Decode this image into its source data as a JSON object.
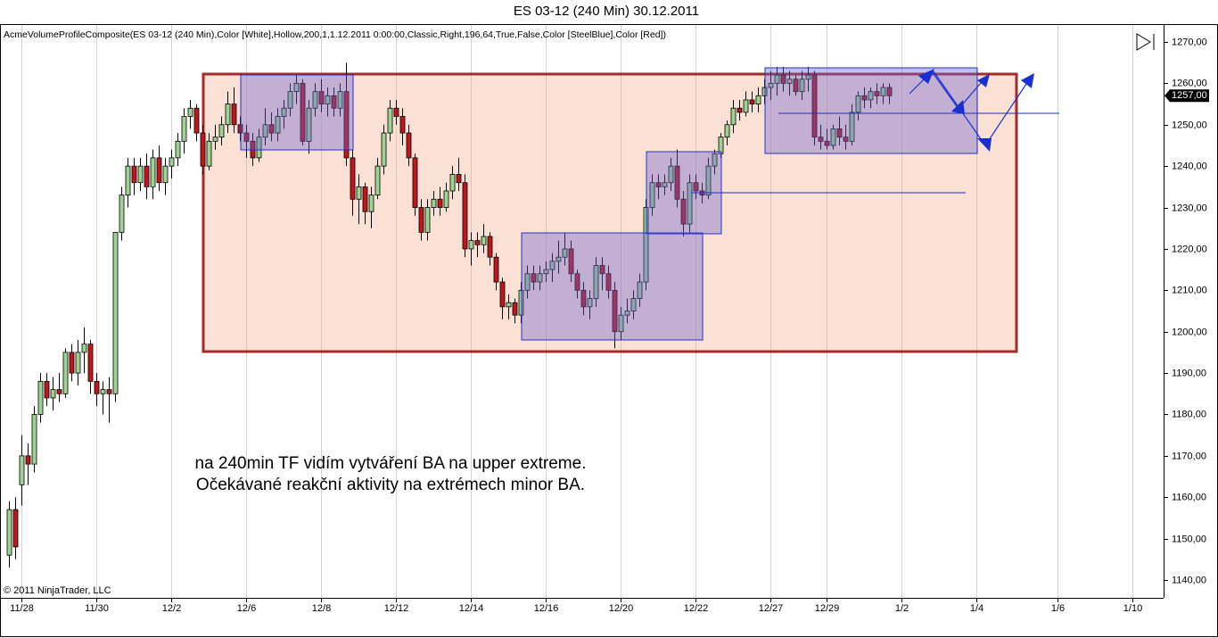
{
  "chart_data": {
    "type": "candlestick",
    "title": "ES 03-12 (240 Min)  30.12.2011",
    "indicator_label": "AcmeVolumeProfileComposite(ES 03-12 (240 Min),Color [White],Hollow,200,1,1.12.2011 0:00:00,Classic,Right,196,64,True,False,Color [SteelBlue],Color [Red])",
    "copyright": "© 2011 NinjaTrader, LLC",
    "annotation": [
      "na 240min TF vidím vytváření BA na upper extreme.",
      "Očekávané reakční aktivity na extrémech minor BA."
    ],
    "up_color": "#9fd393",
    "down_color": "#c0171c",
    "xlim": [
      -1.43,
      185
    ],
    "ylim": [
      1140,
      1270
    ],
    "yticks": [
      {
        "value": 1140,
        "label": "1140,00"
      },
      {
        "value": 1150,
        "label": "1150,00"
      },
      {
        "value": 1160,
        "label": "1160,00"
      },
      {
        "value": 1170,
        "label": "1170,00"
      },
      {
        "value": 1180,
        "label": "1180,00"
      },
      {
        "value": 1190,
        "label": "1190,00"
      },
      {
        "value": 1200,
        "label": "1200,00"
      },
      {
        "value": 1210,
        "label": "1210,00"
      },
      {
        "value": 1220,
        "label": "1220,00"
      },
      {
        "value": 1230,
        "label": "1230,00"
      },
      {
        "value": 1240,
        "label": "1240,00"
      },
      {
        "value": 1250,
        "label": "1250,00"
      },
      {
        "value": 1260,
        "label": "1260,00"
      },
      {
        "value": 1270,
        "label": "1270,00"
      }
    ],
    "xticks": [
      {
        "value": 2,
        "label": "11/28"
      },
      {
        "value": 14,
        "label": "11/30"
      },
      {
        "value": 26,
        "label": "12/2"
      },
      {
        "value": 38,
        "label": "12/6"
      },
      {
        "value": 50,
        "label": "12/8"
      },
      {
        "value": 62,
        "label": "12/12"
      },
      {
        "value": 74,
        "label": "12/14"
      },
      {
        "value": 86,
        "label": "12/16"
      },
      {
        "value": 98,
        "label": "12/20"
      },
      {
        "value": 110,
        "label": "12/22"
      },
      {
        "value": 122,
        "label": "12/27"
      },
      {
        "value": 131,
        "label": "12/29"
      },
      {
        "value": 143,
        "label": "1/2"
      },
      {
        "value": 155,
        "label": "1/4"
      },
      {
        "value": 168,
        "label": "1/6"
      },
      {
        "value": 180,
        "label": "1/10"
      }
    ],
    "last_price": {
      "value": 1257,
      "label": "1257,00"
    },
    "ohlc": [
      [
        1146,
        1159,
        1143,
        1157
      ],
      [
        1157,
        1160,
        1145,
        1148
      ],
      [
        1163,
        1175,
        1158,
        1170
      ],
      [
        1170,
        1173,
        1163,
        1168
      ],
      [
        1168,
        1182,
        1166,
        1180
      ],
      [
        1180,
        1190,
        1178,
        1188
      ],
      [
        1188,
        1190,
        1182,
        1184
      ],
      [
        1184,
        1189,
        1181,
        1186
      ],
      [
        1186,
        1190,
        1183,
        1185
      ],
      [
        1185,
        1196,
        1184,
        1195
      ],
      [
        1195,
        1197,
        1188,
        1190
      ],
      [
        1190,
        1198,
        1187,
        1195
      ],
      [
        1195,
        1201,
        1190,
        1197
      ],
      [
        1197,
        1198,
        1185,
        1188
      ],
      [
        1188,
        1190,
        1182,
        1185
      ],
      [
        1185,
        1188,
        1180,
        1186
      ],
      [
        1186,
        1189,
        1178,
        1185
      ],
      [
        1185,
        1224,
        1183,
        1224
      ],
      [
        1224,
        1235,
        1222,
        1233
      ],
      [
        1233,
        1242,
        1230,
        1240
      ],
      [
        1240,
        1242,
        1233,
        1236
      ],
      [
        1236,
        1242,
        1234,
        1240
      ],
      [
        1240,
        1243,
        1232,
        1235
      ],
      [
        1235,
        1244,
        1232,
        1242
      ],
      [
        1242,
        1245,
        1234,
        1236
      ],
      [
        1236,
        1242,
        1233,
        1240
      ],
      [
        1240,
        1244,
        1237,
        1242
      ],
      [
        1242,
        1248,
        1240,
        1246
      ],
      [
        1246,
        1254,
        1243,
        1252
      ],
      [
        1252,
        1256,
        1249,
        1254
      ],
      [
        1254,
        1255,
        1246,
        1248
      ],
      [
        1248,
        1250,
        1238,
        1240
      ],
      [
        1240,
        1248,
        1239,
        1246
      ],
      [
        1246,
        1250,
        1244,
        1247
      ],
      [
        1247,
        1252,
        1245,
        1250
      ],
      [
        1250,
        1258,
        1248,
        1255
      ],
      [
        1255,
        1259,
        1248,
        1250
      ],
      [
        1250,
        1252,
        1246,
        1248
      ],
      [
        1248,
        1250,
        1242,
        1246
      ],
      [
        1246,
        1248,
        1240,
        1242
      ],
      [
        1242,
        1249,
        1241,
        1247
      ],
      [
        1247,
        1254,
        1245,
        1250
      ],
      [
        1250,
        1253,
        1246,
        1248
      ],
      [
        1248,
        1254,
        1246,
        1252
      ],
      [
        1252,
        1256,
        1249,
        1254
      ],
      [
        1254,
        1260,
        1252,
        1258
      ],
      [
        1258,
        1262,
        1255,
        1260
      ],
      [
        1260,
        1261,
        1245,
        1246
      ],
      [
        1246,
        1256,
        1243,
        1254
      ],
      [
        1254,
        1260,
        1252,
        1258
      ],
      [
        1258,
        1261,
        1253,
        1255
      ],
      [
        1255,
        1259,
        1252,
        1257
      ],
      [
        1257,
        1259,
        1252,
        1254
      ],
      [
        1254,
        1260,
        1252,
        1258
      ],
      [
        1258,
        1265,
        1240,
        1242
      ],
      [
        1242,
        1244,
        1228,
        1232
      ],
      [
        1232,
        1238,
        1226,
        1235
      ],
      [
        1235,
        1236,
        1226,
        1229
      ],
      [
        1229,
        1235,
        1225,
        1233
      ],
      [
        1233,
        1242,
        1232,
        1240
      ],
      [
        1240,
        1250,
        1238,
        1248
      ],
      [
        1248,
        1256,
        1246,
        1254
      ],
      [
        1254,
        1256,
        1250,
        1252
      ],
      [
        1252,
        1254,
        1245,
        1248
      ],
      [
        1248,
        1250,
        1240,
        1242
      ],
      [
        1242,
        1243,
        1228,
        1230
      ],
      [
        1230,
        1232,
        1222,
        1224
      ],
      [
        1224,
        1232,
        1222,
        1230
      ],
      [
        1230,
        1234,
        1228,
        1232
      ],
      [
        1232,
        1235,
        1228,
        1230
      ],
      [
        1230,
        1236,
        1229,
        1234
      ],
      [
        1234,
        1240,
        1232,
        1238
      ],
      [
        1238,
        1242,
        1234,
        1236
      ],
      [
        1236,
        1238,
        1218,
        1220
      ],
      [
        1220,
        1224,
        1216,
        1222
      ],
      [
        1222,
        1224,
        1218,
        1221
      ],
      [
        1221,
        1226,
        1219,
        1223
      ],
      [
        1223,
        1224,
        1216,
        1218
      ],
      [
        1218,
        1219,
        1210,
        1212
      ],
      [
        1212,
        1213,
        1203,
        1206
      ],
      [
        1206,
        1209,
        1203,
        1207
      ],
      [
        1207,
        1208,
        1202,
        1204
      ],
      [
        1204,
        1212,
        1202,
        1210
      ],
      [
        1210,
        1216,
        1208,
        1214
      ],
      [
        1214,
        1216,
        1210,
        1212
      ],
      [
        1212,
        1216,
        1210,
        1214
      ],
      [
        1214,
        1217,
        1212,
        1215
      ],
      [
        1215,
        1219,
        1212,
        1217
      ],
      [
        1217,
        1222,
        1214,
        1218
      ],
      [
        1218,
        1224,
        1216,
        1220
      ],
      [
        1220,
        1222,
        1212,
        1214
      ],
      [
        1214,
        1215,
        1208,
        1210
      ],
      [
        1210,
        1212,
        1204,
        1206
      ],
      [
        1206,
        1210,
        1203,
        1208
      ],
      [
        1208,
        1218,
        1206,
        1216
      ],
      [
        1216,
        1218,
        1210,
        1214
      ],
      [
        1214,
        1216,
        1208,
        1210
      ],
      [
        1210,
        1212,
        1196,
        1200
      ],
      [
        1200,
        1206,
        1198,
        1204
      ],
      [
        1204,
        1208,
        1202,
        1205
      ],
      [
        1205,
        1210,
        1203,
        1208
      ],
      [
        1208,
        1214,
        1206,
        1212
      ],
      [
        1212,
        1232,
        1210,
        1230
      ],
      [
        1230,
        1238,
        1228,
        1236
      ],
      [
        1236,
        1238,
        1232,
        1235
      ],
      [
        1235,
        1238,
        1233,
        1236
      ],
      [
        1236,
        1242,
        1234,
        1240
      ],
      [
        1240,
        1244,
        1230,
        1232
      ],
      [
        1232,
        1234,
        1223,
        1226
      ],
      [
        1226,
        1238,
        1224,
        1236
      ],
      [
        1236,
        1238,
        1232,
        1234
      ],
      [
        1234,
        1236,
        1231,
        1233
      ],
      [
        1233,
        1242,
        1232,
        1240
      ],
      [
        1240,
        1244,
        1238,
        1243
      ],
      [
        1243,
        1248,
        1242,
        1247
      ],
      [
        1247,
        1251,
        1245,
        1250
      ],
      [
        1250,
        1256,
        1248,
        1254
      ],
      [
        1254,
        1256,
        1251,
        1253
      ],
      [
        1253,
        1258,
        1252,
        1256
      ],
      [
        1256,
        1258,
        1253,
        1255
      ],
      [
        1255,
        1259,
        1253,
        1257
      ],
      [
        1257,
        1261,
        1255,
        1259
      ],
      [
        1259,
        1263,
        1256,
        1260
      ],
      [
        1260,
        1264,
        1257,
        1262
      ],
      [
        1262,
        1264,
        1258,
        1260
      ],
      [
        1260,
        1263,
        1257,
        1261
      ],
      [
        1261,
        1262,
        1257,
        1258
      ],
      [
        1258,
        1263,
        1256,
        1261
      ],
      [
        1261,
        1264,
        1258,
        1262
      ],
      [
        1262,
        1263,
        1245,
        1247
      ],
      [
        1247,
        1250,
        1244,
        1246
      ],
      [
        1246,
        1249,
        1244,
        1245
      ],
      [
        1245,
        1250,
        1244,
        1249
      ],
      [
        1249,
        1252,
        1245,
        1247
      ],
      [
        1247,
        1250,
        1244,
        1246
      ],
      [
        1246,
        1255,
        1245,
        1253
      ],
      [
        1253,
        1258,
        1251,
        1257
      ],
      [
        1257,
        1259,
        1254,
        1256
      ],
      [
        1256,
        1259,
        1254,
        1258
      ],
      [
        1258,
        1260,
        1255,
        1257
      ],
      [
        1257,
        1260,
        1255,
        1259
      ],
      [
        1259,
        1260,
        1255,
        1257
      ]
    ]
  }
}
